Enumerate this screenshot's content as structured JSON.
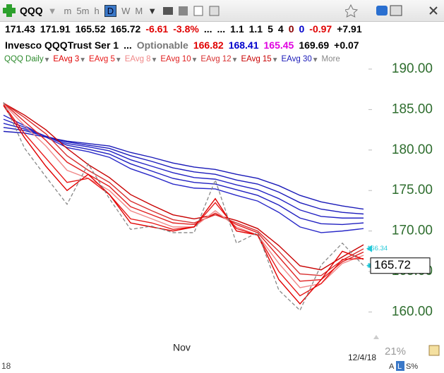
{
  "toolbar": {
    "symbol": "QQQ",
    "intervals": [
      "m",
      "5m",
      "h",
      "D",
      "W",
      "M"
    ]
  },
  "quote": {
    "items": [
      {
        "text": "171.43",
        "color": "#000000"
      },
      {
        "text": "171.91",
        "color": "#000000"
      },
      {
        "text": "165.52",
        "color": "#000000"
      },
      {
        "text": "165.72",
        "color": "#000000"
      },
      {
        "text": "-6.61",
        "color": "#e00000"
      },
      {
        "text": "-3.8%",
        "color": "#e00000"
      },
      {
        "text": "...",
        "color": "#000000"
      },
      {
        "text": "...",
        "color": "#000000"
      },
      {
        "text": "1.1",
        "color": "#000000"
      },
      {
        "text": "1.1",
        "color": "#000000"
      },
      {
        "text": "5",
        "color": "#000000"
      },
      {
        "text": "4",
        "color": "#000000"
      },
      {
        "text": "0",
        "color": "#8b0000"
      },
      {
        "text": "0",
        "color": "#0000cc"
      },
      {
        "text": "-0.97",
        "color": "#e00000"
      },
      {
        "text": "+7.91",
        "color": "#000000"
      }
    ]
  },
  "info": {
    "items": [
      {
        "text": "Invesco QQQTrust Ser 1",
        "color": "#000000"
      },
      {
        "text": "...",
        "color": "#000000"
      },
      {
        "text": "Optionable",
        "color": "#777777"
      },
      {
        "text": "166.82",
        "color": "#e00000"
      },
      {
        "text": "168.41",
        "color": "#0000cc"
      },
      {
        "text": "165.45",
        "color": "#e000e0"
      },
      {
        "text": "169.69",
        "color": "#000000"
      },
      {
        "text": "+0.07",
        "color": "#000000"
      }
    ]
  },
  "legend_more": "More",
  "chart_data": {
    "type": "line",
    "categories": [
      null,
      null,
      null,
      null,
      null,
      null,
      null,
      null,
      "Nov",
      null,
      null,
      null,
      null,
      null,
      null,
      null,
      null,
      null
    ],
    "ylim": [
      157.6,
      192.0
    ],
    "yticks": [
      {
        "value": 160,
        "label": "160.00"
      },
      {
        "value": 165,
        "label": "165.00"
      },
      {
        "value": 170,
        "label": "170.00"
      },
      {
        "value": 175,
        "label": "175.00"
      },
      {
        "value": 180,
        "label": "180.00"
      },
      {
        "value": 185,
        "label": "185.00"
      },
      {
        "value": 190,
        "label": "190.00"
      }
    ],
    "series": [
      {
        "name": "QQQ Daily",
        "color": "#2e8b2e",
        "line_color": "#888888",
        "dashed": true,
        "values": [
          185.9,
          180.2,
          176.7,
          173.3,
          178.3,
          174.0,
          170.2,
          170.6,
          169.8,
          169.8,
          176.3,
          168.5,
          169.8,
          162.7,
          160.2,
          165.8,
          168.5,
          165.72
        ]
      },
      {
        "name": "EAvg 3",
        "color": "#e00000",
        "values": [
          185.5,
          181.5,
          178,
          175,
          177,
          174.5,
          171,
          170.5,
          170,
          170.5,
          174,
          170,
          169.5,
          164,
          161,
          164,
          167.5,
          166.5
        ]
      },
      {
        "name": "EAvg 5",
        "color": "#e81818",
        "values": [
          185.6,
          182,
          179,
          176,
          176.5,
          174.5,
          171.5,
          171,
          170.2,
          170.5,
          173.5,
          170.3,
          169.5,
          165,
          162,
          163.5,
          166.5,
          166.6
        ]
      },
      {
        "name": "EAvg 8",
        "color": "#f08888",
        "values": [
          185.7,
          183,
          180.5,
          177.5,
          176.5,
          175,
          172.5,
          171.5,
          170.5,
          170.5,
          172.5,
          170.5,
          169.5,
          166,
          163,
          163.5,
          166,
          167
        ]
      },
      {
        "name": "EAvg 10",
        "color": "#e02020",
        "values": [
          185.8,
          183.5,
          181.2,
          178.5,
          177,
          175.5,
          173,
          172,
          171,
          170.8,
          172.2,
          170.8,
          169.8,
          166.8,
          163.8,
          164,
          166.2,
          167.4
        ]
      },
      {
        "name": "EAvg 12",
        "color": "#d83030",
        "values": [
          185.8,
          184,
          182,
          179.3,
          177.5,
          176,
          173.7,
          172.5,
          171.4,
          171,
          172,
          171,
          170,
          167.5,
          164.7,
          164.5,
          166.4,
          167.8
        ]
      },
      {
        "name": "EAvg 15",
        "color": "#c80000",
        "values": [
          185.8,
          184.3,
          182.5,
          180.2,
          178.2,
          176.6,
          174.5,
          173.2,
          172,
          171.5,
          172,
          171.3,
          170.3,
          168.2,
          165.7,
          165.2,
          166.8,
          168.3
        ]
      },
      {
        "name": "EAvg 30",
        "color": "#1a1ab8",
        "values": [
          182.3,
          182.1,
          181.6,
          181.1,
          180.8,
          180.5,
          179.7,
          179.1,
          178.4,
          177.9,
          177.6,
          177,
          176.5,
          175.6,
          174.4,
          173.6,
          173.1,
          172.7
        ]
      },
      {
        "color": "#2828c8",
        "values": [
          184.3,
          183,
          181.6,
          180.3,
          179.8,
          179.1,
          177.7,
          176.8,
          175.8,
          175.3,
          175.2,
          174.4,
          173.7,
          172.3,
          170.5,
          169.8,
          170,
          170.3
        ]
      },
      {
        "color": "#2020c0",
        "values": [
          183.8,
          182.8,
          181.7,
          180.6,
          180.1,
          179.5,
          178.3,
          177.4,
          176.5,
          176,
          175.8,
          175.1,
          174.4,
          173.2,
          171.6,
          170.9,
          170.8,
          171
        ]
      },
      {
        "color": "#2424c4",
        "values": [
          183.3,
          182.6,
          181.7,
          180.8,
          180.4,
          179.9,
          178.8,
          178,
          177.2,
          176.6,
          176.4,
          175.7,
          175.1,
          174,
          172.6,
          171.8,
          171.6,
          171.6
        ]
      },
      {
        "color": "#1c1cbc",
        "values": [
          182.8,
          182.4,
          181.7,
          181,
          180.6,
          180.2,
          179.3,
          178.6,
          177.8,
          177.3,
          177,
          176.3,
          175.8,
          174.8,
          173.5,
          172.7,
          172.3,
          172.1
        ]
      }
    ],
    "price_markers": [
      {
        "value": 166.34,
        "color": "#22c8d8"
      },
      {
        "value": 166.33,
        "color": "#22c8d8"
      },
      {
        "value": 165.72,
        "color": "#000000",
        "boxed": true
      }
    ],
    "last_date": "12/4/18",
    "year_label": "18"
  },
  "status": {
    "zoom": "21%",
    "modes": [
      "A",
      "L",
      "S%"
    ]
  }
}
